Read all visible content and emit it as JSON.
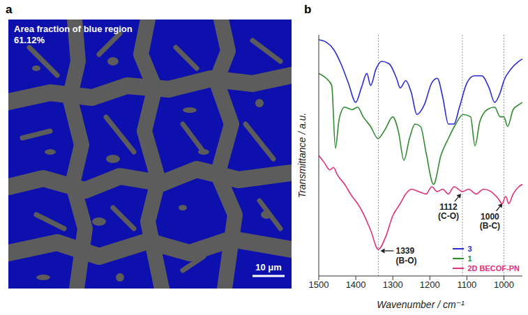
{
  "chart_data": [
    {
      "panel": "a",
      "type": "image",
      "text": [
        "Area fraction of blue region",
        "61.12%"
      ],
      "scale_bar": "10 μm"
    },
    {
      "panel": "b",
      "type": "line",
      "x_label": "Wavenumber / cm⁻¹",
      "y_label": "Transmittance / a.u.",
      "xlim": [
        1500,
        950
      ],
      "xticks": [
        1500,
        1400,
        1300,
        1200,
        1100,
        1000
      ],
      "ylim": [
        0,
        100
      ],
      "yticks": [],
      "tick_labels": "x",
      "grid": false,
      "legend": "lower right",
      "series": [
        {
          "name": "3",
          "color": "#2b2bd0",
          "x": [
            1500,
            1480,
            1460,
            1440,
            1420,
            1400,
            1385,
            1370,
            1360,
            1345,
            1330,
            1310,
            1290,
            1280,
            1265,
            1250,
            1235,
            1215,
            1195,
            1180,
            1165,
            1150,
            1135,
            1120,
            1100,
            1080,
            1060,
            1040,
            1025,
            1010,
            1000,
            980,
            960,
            950
          ],
          "values": [
            98,
            97,
            94,
            88,
            80,
            72,
            78,
            84,
            79,
            86,
            89,
            88,
            82,
            78,
            81,
            76,
            67,
            71,
            80,
            82,
            74,
            63,
            63,
            70,
            80,
            83,
            83,
            78,
            72,
            76,
            81,
            86,
            89,
            90
          ]
        },
        {
          "name": "1",
          "color": "#2e8b2e",
          "x": [
            1500,
            1480,
            1465,
            1455,
            1445,
            1430,
            1410,
            1395,
            1380,
            1360,
            1340,
            1320,
            1300,
            1285,
            1270,
            1255,
            1240,
            1225,
            1210,
            1190,
            1170,
            1150,
            1130,
            1110,
            1090,
            1078,
            1065,
            1045,
            1025,
            1010,
            1000,
            990,
            975,
            960,
            950
          ],
          "values": [
            84,
            82,
            79,
            53,
            65,
            70,
            69,
            70,
            66,
            62,
            57,
            61,
            66,
            60,
            48,
            57,
            63,
            62,
            51,
            38,
            50,
            57,
            63,
            67,
            66,
            54,
            64,
            69,
            70,
            66,
            66,
            62,
            69,
            71,
            72
          ]
        },
        {
          "name": "2D BECOF-PN",
          "color": "#e0307a",
          "x": [
            1500,
            1485,
            1470,
            1460,
            1450,
            1430,
            1410,
            1395,
            1380,
            1360,
            1339,
            1320,
            1300,
            1280,
            1265,
            1250,
            1230,
            1210,
            1195,
            1180,
            1165,
            1150,
            1135,
            1112,
            1095,
            1075,
            1055,
            1035,
            1015,
            1005,
            995,
            987,
            975,
            960,
            950
          ],
          "values": [
            50,
            47,
            44,
            45,
            42,
            38,
            33,
            30,
            26,
            19,
            11,
            16,
            25,
            30,
            34,
            36,
            35,
            34,
            37,
            35,
            36,
            34,
            37,
            35,
            36,
            34,
            36,
            35,
            32,
            30,
            33,
            30,
            34,
            37,
            38
          ]
        }
      ],
      "annotations": [
        {
          "x": 1339,
          "y": 11,
          "text": [
            "1339",
            "(B-O)"
          ]
        },
        {
          "x": 1112,
          "y": 35,
          "text": [
            "1112",
            "(C-O)"
          ]
        },
        {
          "x": 1000,
          "y": 31,
          "text": [
            "1000",
            "(B-C)"
          ]
        }
      ]
    }
  ]
}
